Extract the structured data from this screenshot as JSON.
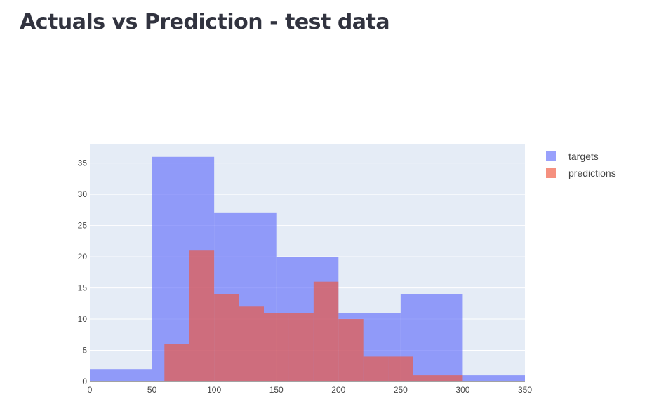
{
  "page": {
    "title": "Actuals vs Prediction - test data"
  },
  "chart_data": {
    "type": "bar",
    "subtype": "overlaid-histogram",
    "title": "",
    "xlabel": "",
    "ylabel": "",
    "xlim": [
      0,
      350
    ],
    "ylim": [
      0,
      38
    ],
    "x_ticks": [
      0,
      50,
      100,
      150,
      200,
      250,
      300,
      350
    ],
    "y_ticks": [
      0,
      5,
      10,
      15,
      20,
      25,
      30,
      35
    ],
    "grid": true,
    "legend_position": "top-right",
    "colors": {
      "plot_bg": "#e5ecf6",
      "targets": "#636efa",
      "predictions": "#ef553b"
    },
    "series": [
      {
        "name": "targets",
        "color": "#636efa",
        "opacity": 0.65,
        "bins": [
          {
            "x0": 0,
            "x1": 50,
            "count": 2
          },
          {
            "x0": 50,
            "x1": 100,
            "count": 36
          },
          {
            "x0": 100,
            "x1": 150,
            "count": 27
          },
          {
            "x0": 150,
            "x1": 200,
            "count": 20
          },
          {
            "x0": 200,
            "x1": 250,
            "count": 11
          },
          {
            "x0": 250,
            "x1": 300,
            "count": 14
          },
          {
            "x0": 300,
            "x1": 350,
            "count": 1
          }
        ]
      },
      {
        "name": "predictions",
        "color": "#ef553b",
        "opacity": 0.65,
        "bins": [
          {
            "x0": 60,
            "x1": 80,
            "count": 6
          },
          {
            "x0": 80,
            "x1": 100,
            "count": 21
          },
          {
            "x0": 100,
            "x1": 120,
            "count": 14
          },
          {
            "x0": 120,
            "x1": 140,
            "count": 12
          },
          {
            "x0": 140,
            "x1": 160,
            "count": 11
          },
          {
            "x0": 160,
            "x1": 180,
            "count": 11
          },
          {
            "x0": 180,
            "x1": 200,
            "count": 16
          },
          {
            "x0": 200,
            "x1": 220,
            "count": 10
          },
          {
            "x0": 220,
            "x1": 240,
            "count": 4
          },
          {
            "x0": 240,
            "x1": 260,
            "count": 4
          },
          {
            "x0": 260,
            "x1": 280,
            "count": 1
          },
          {
            "x0": 280,
            "x1": 300,
            "count": 1
          }
        ]
      }
    ]
  }
}
